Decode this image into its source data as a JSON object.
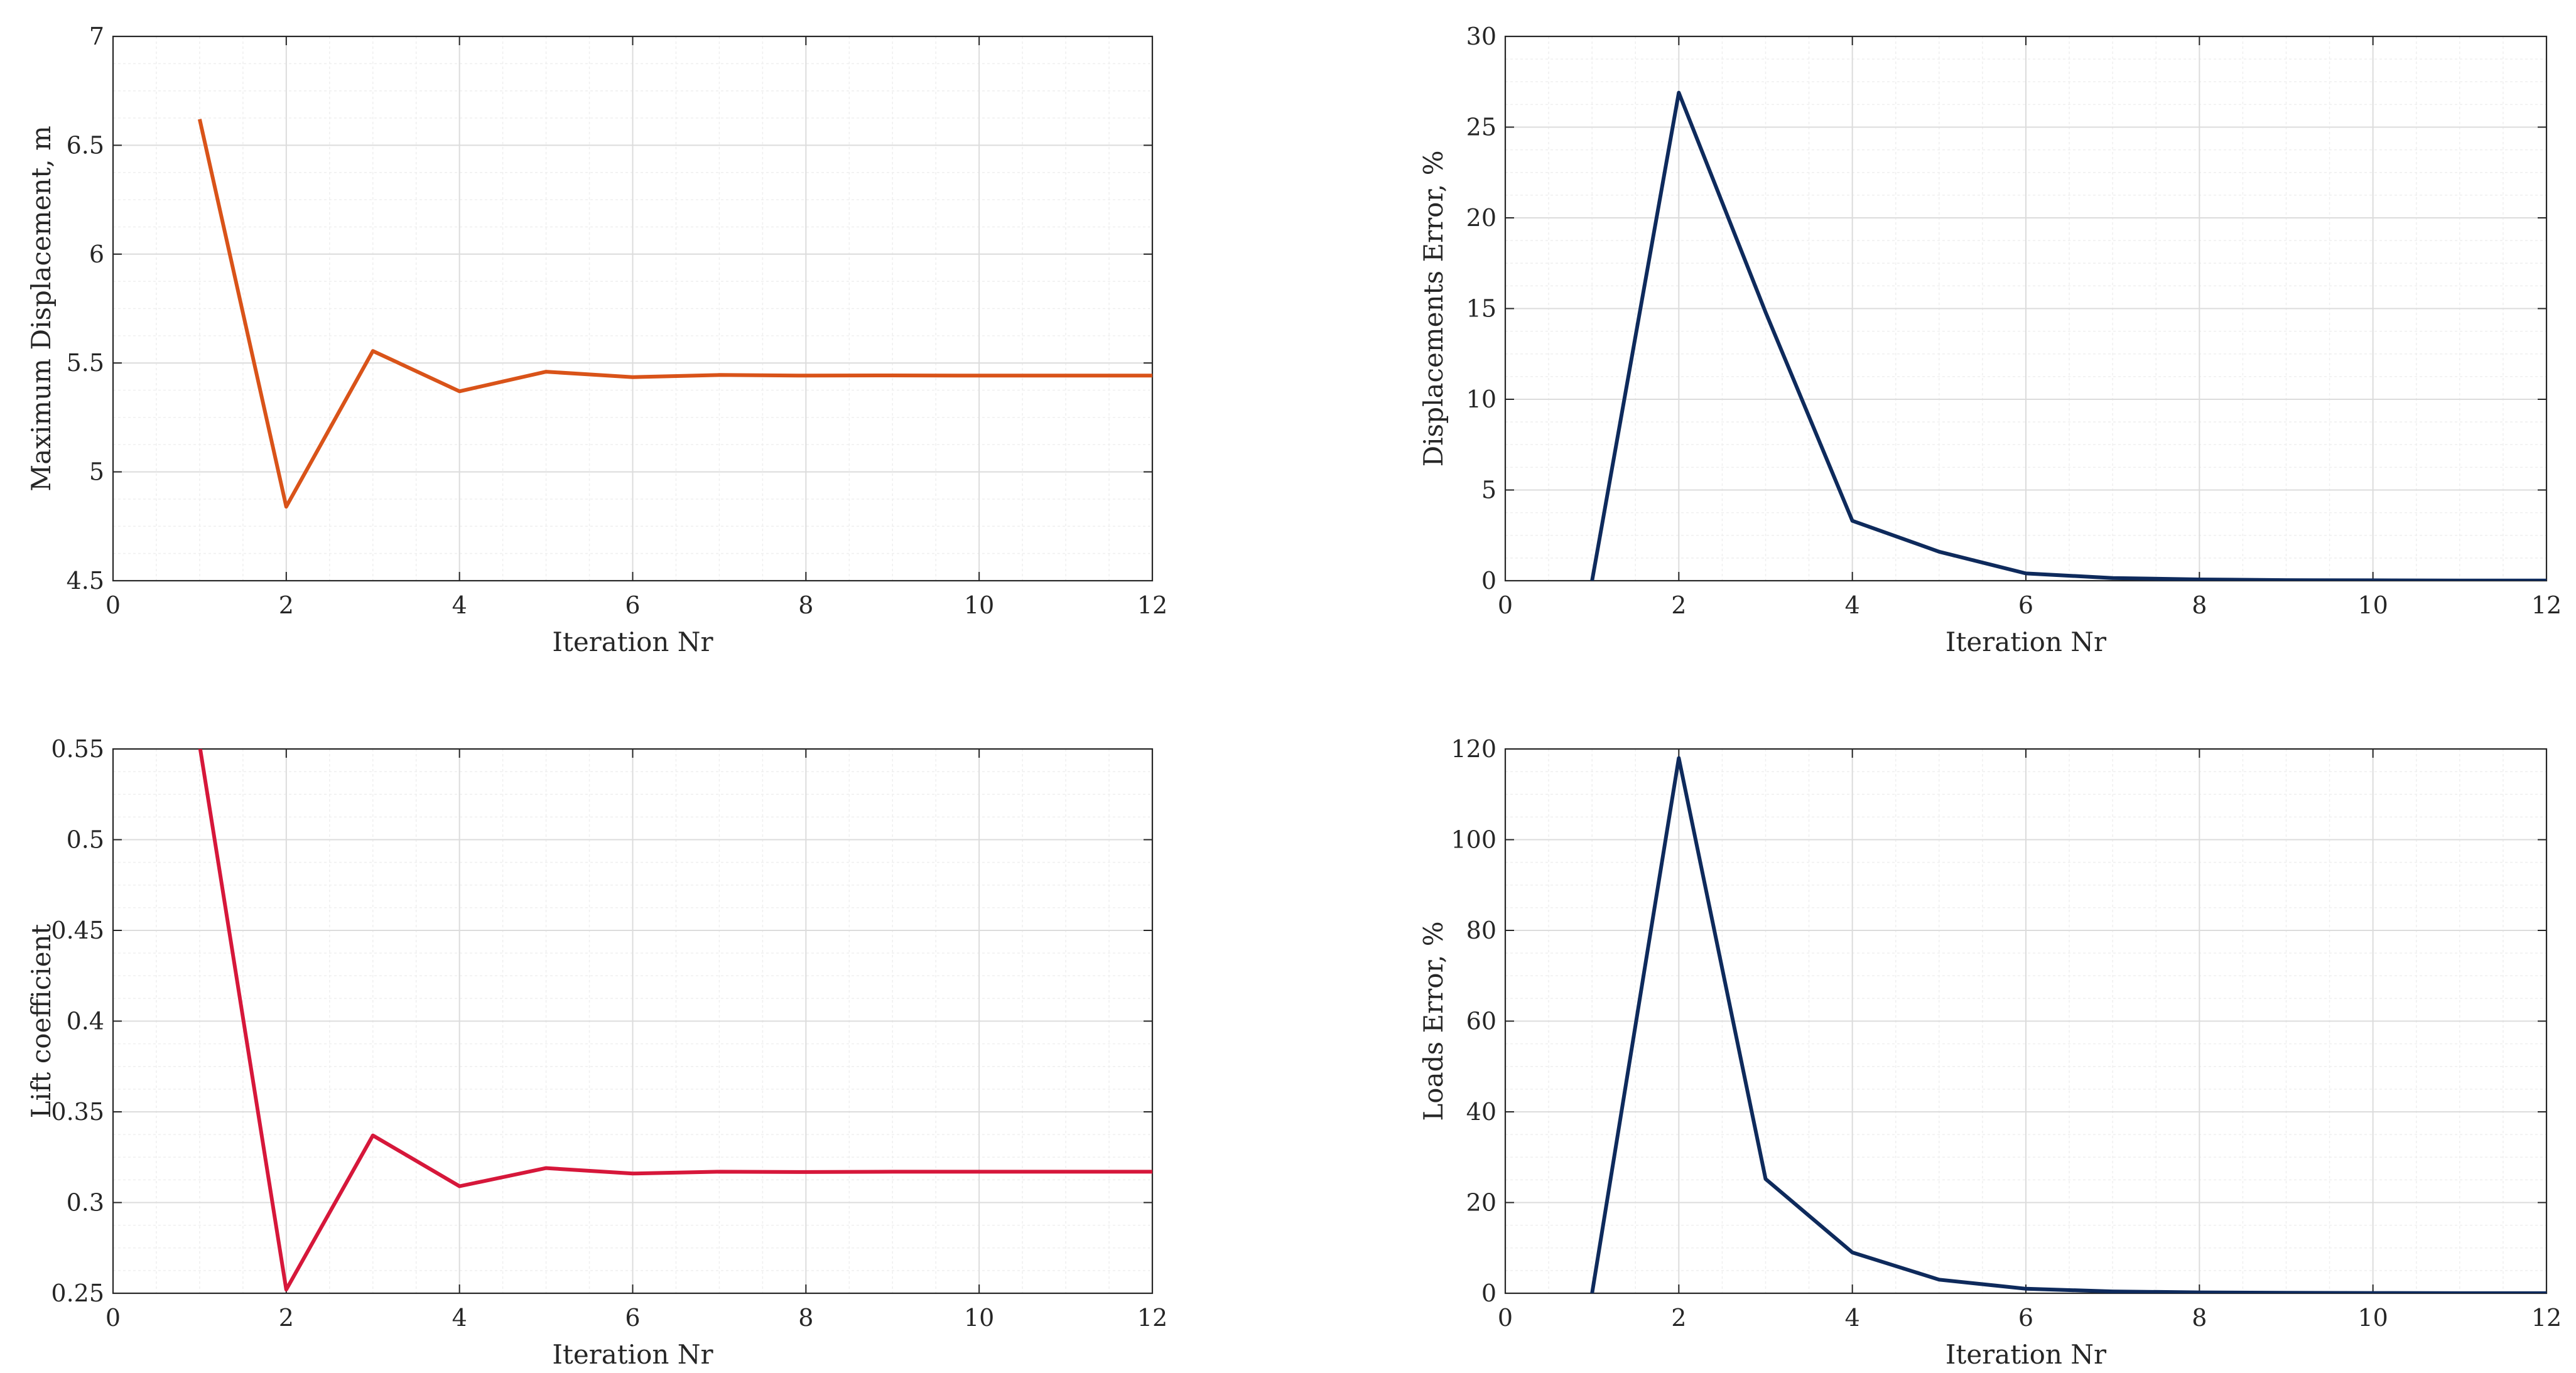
{
  "chart_data": [
    {
      "type": "line",
      "title": "",
      "xlabel": "Iteration Nr",
      "ylabel": "Maximum Displacement, m",
      "xlim": [
        0,
        12
      ],
      "ylim": [
        4.5,
        7
      ],
      "xticks": [
        "0",
        "2",
        "4",
        "6",
        "8",
        "10",
        "12"
      ],
      "yticks": [
        "4.5",
        "5",
        "5.5",
        "6",
        "6.5",
        "7"
      ],
      "grid": true,
      "color": "#D95319",
      "x": [
        1,
        2,
        3,
        4,
        5,
        6,
        7,
        8,
        9,
        10,
        11,
        12
      ],
      "y": [
        6.62,
        4.84,
        5.555,
        5.37,
        5.46,
        5.435,
        5.445,
        5.442,
        5.443,
        5.442,
        5.442,
        5.442
      ]
    },
    {
      "type": "line",
      "title": "",
      "xlabel": "Iteration Nr",
      "ylabel": "Displacements Error, %",
      "xlim": [
        0,
        12
      ],
      "ylim": [
        0,
        30
      ],
      "xticks": [
        "0",
        "2",
        "4",
        "6",
        "8",
        "10",
        "12"
      ],
      "yticks": [
        "0",
        "5",
        "10",
        "15",
        "20",
        "25",
        "30"
      ],
      "grid": true,
      "color": "#0E2A5C",
      "x": [
        1,
        2,
        3,
        4,
        5,
        6,
        7,
        8,
        9,
        10,
        11,
        12
      ],
      "y": [
        0,
        26.9,
        14.8,
        3.3,
        1.6,
        0.4,
        0.15,
        0.07,
        0.03,
        0.02,
        0.01,
        0.01
      ]
    },
    {
      "type": "line",
      "title": "",
      "xlabel": "Iteration Nr",
      "ylabel": "Lift coefficient",
      "xlim": [
        0,
        12
      ],
      "ylim": [
        0.25,
        0.55
      ],
      "xticks": [
        "0",
        "2",
        "4",
        "6",
        "8",
        "10",
        "12"
      ],
      "yticks": [
        "0.25",
        "0.3",
        "0.35",
        "0.4",
        "0.45",
        "0.5",
        "0.55"
      ],
      "grid": true,
      "color": "#D6173A",
      "x": [
        1,
        2,
        3,
        4,
        5,
        6,
        7,
        8,
        9,
        10,
        11,
        12
      ],
      "y": [
        0.552,
        0.252,
        0.337,
        0.309,
        0.319,
        0.316,
        0.317,
        0.3168,
        0.317,
        0.317,
        0.317,
        0.317
      ]
    },
    {
      "type": "line",
      "title": "",
      "xlabel": "Iteration Nr",
      "ylabel": "Loads Error, %",
      "xlim": [
        0,
        12
      ],
      "ylim": [
        0,
        120
      ],
      "xticks": [
        "0",
        "2",
        "4",
        "6",
        "8",
        "10",
        "12"
      ],
      "yticks": [
        "0",
        "20",
        "40",
        "60",
        "80",
        "100",
        "120"
      ],
      "grid": true,
      "color": "#0E2A5C",
      "x": [
        1,
        2,
        3,
        4,
        5,
        6,
        7,
        8,
        9,
        10,
        11,
        12
      ],
      "y": [
        0,
        118,
        25.2,
        9.0,
        3.0,
        1.0,
        0.4,
        0.2,
        0.1,
        0.05,
        0.02,
        0.01
      ]
    }
  ]
}
